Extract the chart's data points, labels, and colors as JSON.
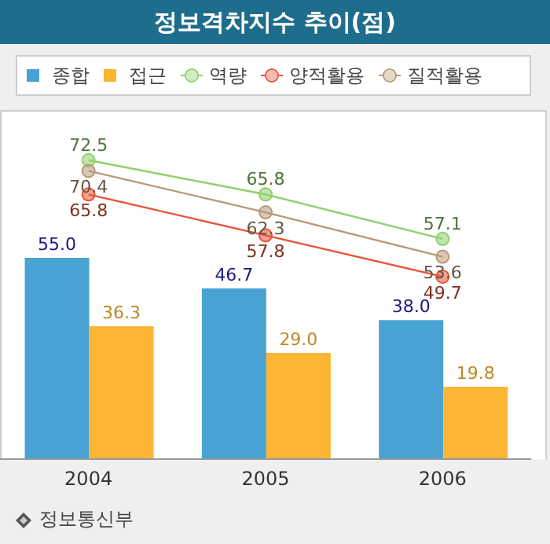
{
  "chart_data": {
    "type": "bar",
    "title": "정보격차지수 추이(점)",
    "categories": [
      "2004",
      "2005",
      "2006"
    ],
    "series": [
      {
        "name": "종합",
        "color": "#48a2d4",
        "values": [
          55.0,
          46.7,
          38.0
        ],
        "value_labels": [
          "55.0",
          "46.7",
          "38.0"
        ]
      },
      {
        "name": "접근",
        "color": "#fbb533",
        "values": [
          36.3,
          29.0,
          19.8
        ],
        "value_labels": [
          "36.3",
          "29.0",
          "19.8"
        ]
      },
      {
        "name": "역량",
        "type": "line",
        "axis": "y2",
        "color": "#8fd06a",
        "values": [
          72.5,
          65.8,
          57.1
        ],
        "value_labels": [
          "72.5",
          "65.8",
          "57.1"
        ]
      },
      {
        "name": "양적활용",
        "type": "line",
        "axis": "y2",
        "color": "#e8553a",
        "values": [
          65.8,
          57.8,
          49.7
        ],
        "value_labels": [
          "65.8",
          "57.8",
          "49.7"
        ]
      },
      {
        "name": "질적활용",
        "type": "line",
        "axis": "y2",
        "color": "#b89a78",
        "values": [
          70.4,
          62.3,
          53.6
        ],
        "value_labels": [
          "70.4",
          "62.3",
          "53.6"
        ]
      }
    ],
    "ylim": [
      0,
      95
    ],
    "y2lim": [
      14,
      82
    ],
    "tick_labels": "x",
    "legend": "top",
    "marker": "circle",
    "grid": false,
    "annotations": [
      "정보통신부"
    ]
  }
}
